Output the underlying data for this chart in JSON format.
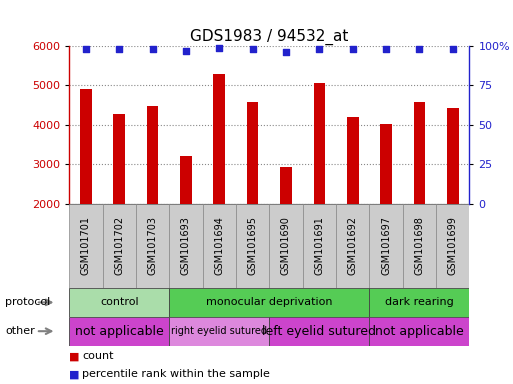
{
  "title": "GDS1983 / 94532_at",
  "samples": [
    "GSM101701",
    "GSM101702",
    "GSM101703",
    "GSM101693",
    "GSM101694",
    "GSM101695",
    "GSM101690",
    "GSM101691",
    "GSM101692",
    "GSM101697",
    "GSM101698",
    "GSM101699"
  ],
  "counts": [
    4900,
    4270,
    4480,
    3220,
    5280,
    4590,
    2920,
    5060,
    4190,
    4030,
    4590,
    4420
  ],
  "percentile_ranks": [
    98,
    98,
    98,
    97,
    99,
    98,
    96,
    98,
    98,
    98,
    98,
    98
  ],
  "ylim_left": [
    2000,
    6000
  ],
  "ylim_right": [
    0,
    100
  ],
  "yticks_left": [
    2000,
    3000,
    4000,
    5000,
    6000
  ],
  "yticks_right": [
    0,
    25,
    50,
    75,
    100
  ],
  "bar_color": "#cc0000",
  "dot_color": "#2222cc",
  "protocol_groups": [
    {
      "label": "control",
      "span": [
        0,
        3
      ],
      "color": "#aaddaa"
    },
    {
      "label": "monocular deprivation",
      "span": [
        3,
        9
      ],
      "color": "#55cc55"
    },
    {
      "label": "dark rearing",
      "span": [
        9,
        12
      ],
      "color": "#55cc55"
    }
  ],
  "other_groups": [
    {
      "label": "not applicable",
      "span": [
        0,
        3
      ],
      "color": "#cc44cc",
      "fontsize": 9
    },
    {
      "label": "right eyelid sutured",
      "span": [
        3,
        6
      ],
      "color": "#dd88dd",
      "fontsize": 7
    },
    {
      "label": "left eyelid sutured",
      "span": [
        6,
        9
      ],
      "color": "#cc44cc",
      "fontsize": 9
    },
    {
      "label": "not applicable",
      "span": [
        9,
        12
      ],
      "color": "#cc44cc",
      "fontsize": 9
    }
  ],
  "protocol_label": "protocol",
  "other_label": "other",
  "legend_count_label": "count",
  "legend_pct_label": "percentile rank within the sample",
  "grid_color": "#888888",
  "bg_color": "#ffffff",
  "bar_width": 0.35,
  "left_axis_color": "#cc0000",
  "right_axis_color": "#2222cc",
  "label_bg": "#cccccc",
  "label_divider": "#999999"
}
